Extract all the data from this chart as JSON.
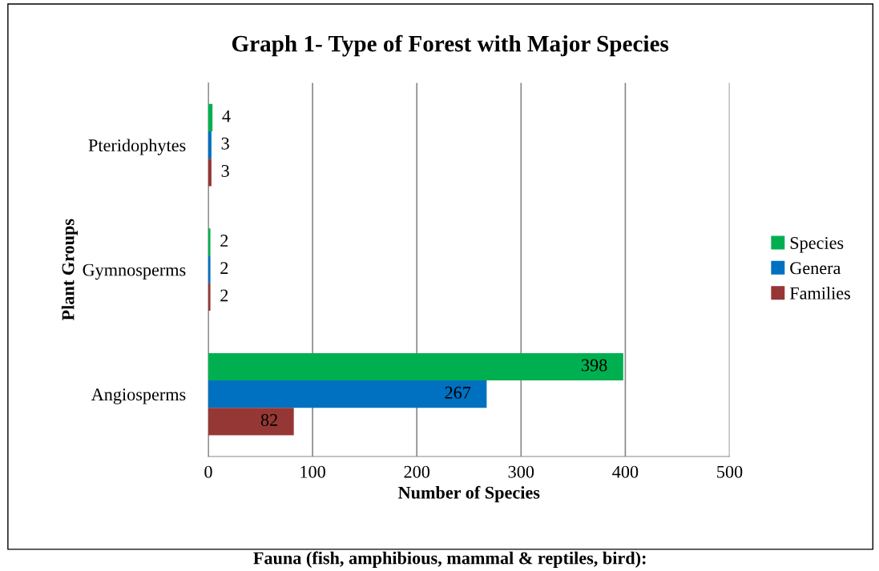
{
  "chart_data": {
    "type": "bar",
    "orientation": "horizontal",
    "title": "Graph 1- Type of Forest with Major Species",
    "xlabel": "Number of Species",
    "ylabel": "Plant Groups",
    "categories": [
      "Pteridophytes",
      "Gymnosperms",
      "Angiosperms"
    ],
    "series": [
      {
        "name": "Species",
        "color": "#00b050",
        "values": [
          4,
          2,
          398
        ]
      },
      {
        "name": "Genera",
        "color": "#0070c0",
        "values": [
          3,
          2,
          267
        ]
      },
      {
        "name": "Families",
        "color": "#953735",
        "values": [
          3,
          2,
          82
        ]
      }
    ],
    "xlim": [
      0,
      500
    ],
    "xticks": [
      0,
      100,
      200,
      300,
      400,
      500
    ],
    "grid": "x",
    "legend": "right",
    "data_labels": true,
    "annotations": [
      "Fauna (fish, amphibious, mammal & reptiles, bird):"
    ]
  }
}
